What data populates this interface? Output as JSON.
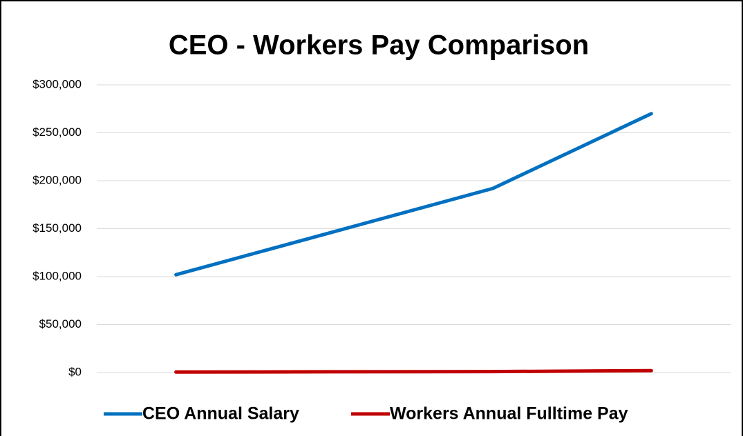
{
  "chart_data": {
    "type": "line",
    "title": "CEO - Workers Pay Comparison",
    "categories": [
      null,
      null,
      null,
      null
    ],
    "series": [
      {
        "name": "CEO Annual Salary",
        "color": "#0070c0",
        "values": [
          102000,
          147000,
          192000,
          270000
        ]
      },
      {
        "name": "Workers Annual Fulltime Pay",
        "color": "#c00000",
        "values": [
          500,
          800,
          1000,
          2000
        ]
      }
    ],
    "ylim": [
      0,
      300000
    ],
    "yticks": [
      {
        "value": 0,
        "label": "$0"
      },
      {
        "value": 50000,
        "label": "$50,000"
      },
      {
        "value": 100000,
        "label": "$100,000"
      },
      {
        "value": 150000,
        "label": "$150,000"
      },
      {
        "value": 200000,
        "label": "$200,000"
      },
      {
        "value": 250000,
        "label": "$250,000"
      },
      {
        "value": 300000,
        "label": "$300,000"
      }
    ],
    "grid": true,
    "legend": "bottom"
  }
}
